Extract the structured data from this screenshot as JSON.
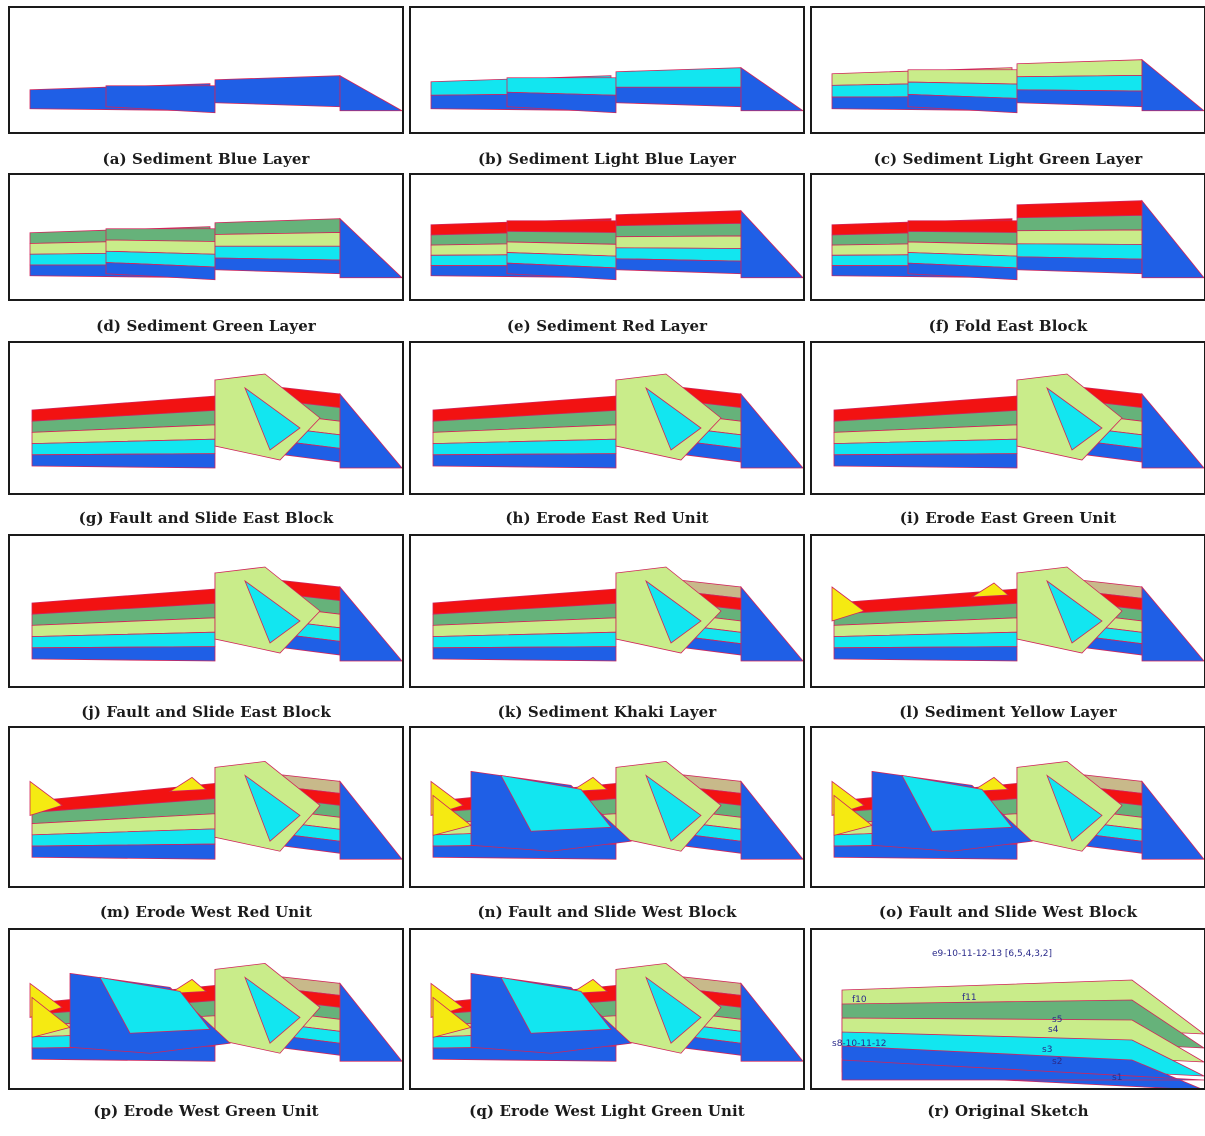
{
  "figure": {
    "panels": [
      {
        "id": "a",
        "caption": "(a) Sediment Blue Layer",
        "stage": 1
      },
      {
        "id": "b",
        "caption": "(b) Sediment Light Blue Layer",
        "stage": 2
      },
      {
        "id": "c",
        "caption": "(c) Sediment Light Green Layer",
        "stage": 3
      },
      {
        "id": "d",
        "caption": "(d) Sediment Green Layer",
        "stage": 4
      },
      {
        "id": "e",
        "caption": "(e) Sediment Red Layer",
        "stage": 5
      },
      {
        "id": "f",
        "caption": "(f) Fold East Block",
        "stage": 6
      },
      {
        "id": "g",
        "caption": "(g) Fault and Slide East Block",
        "stage": 7
      },
      {
        "id": "h",
        "caption": "(h) Erode East Red Unit",
        "stage": 8
      },
      {
        "id": "i",
        "caption": "(i) Erode East Green Unit",
        "stage": 9
      },
      {
        "id": "j",
        "caption": "(j) Fault and Slide East Block",
        "stage": 10
      },
      {
        "id": "k",
        "caption": "(k) Sediment Khaki Layer",
        "stage": 11
      },
      {
        "id": "l",
        "caption": "(l) Sediment Yellow Layer",
        "stage": 12
      },
      {
        "id": "m",
        "caption": "(m) Erode West Red Unit",
        "stage": 13
      },
      {
        "id": "n",
        "caption": "(n) Fault and Slide West Block",
        "stage": 14
      },
      {
        "id": "o",
        "caption": "(o) Fault and Slide West Block",
        "stage": 15
      },
      {
        "id": "p",
        "caption": "(p) Erode West Green Unit",
        "stage": 16
      },
      {
        "id": "q",
        "caption": "(q) Erode West Light Green Unit",
        "stage": 17
      },
      {
        "id": "r",
        "caption": "(r) Original Sketch",
        "stage": 18
      }
    ],
    "sketch_labels": [
      "e9-10-11-12-13 [6,5,4,3,2]",
      "s8-10-11-12",
      "f10",
      "f11",
      "s5",
      "s4",
      "s3",
      "s2",
      "s1"
    ],
    "colors": {
      "blue": "#1f5fe6",
      "light_blue": "#12e6f0",
      "light_green": "#c9ec8a",
      "green": "#66b27a",
      "red": "#f21212",
      "khaki": "#c8b98a",
      "yellow": "#f5ea12",
      "outline": "#d0245a",
      "frame": "#1a1a1a"
    }
  }
}
